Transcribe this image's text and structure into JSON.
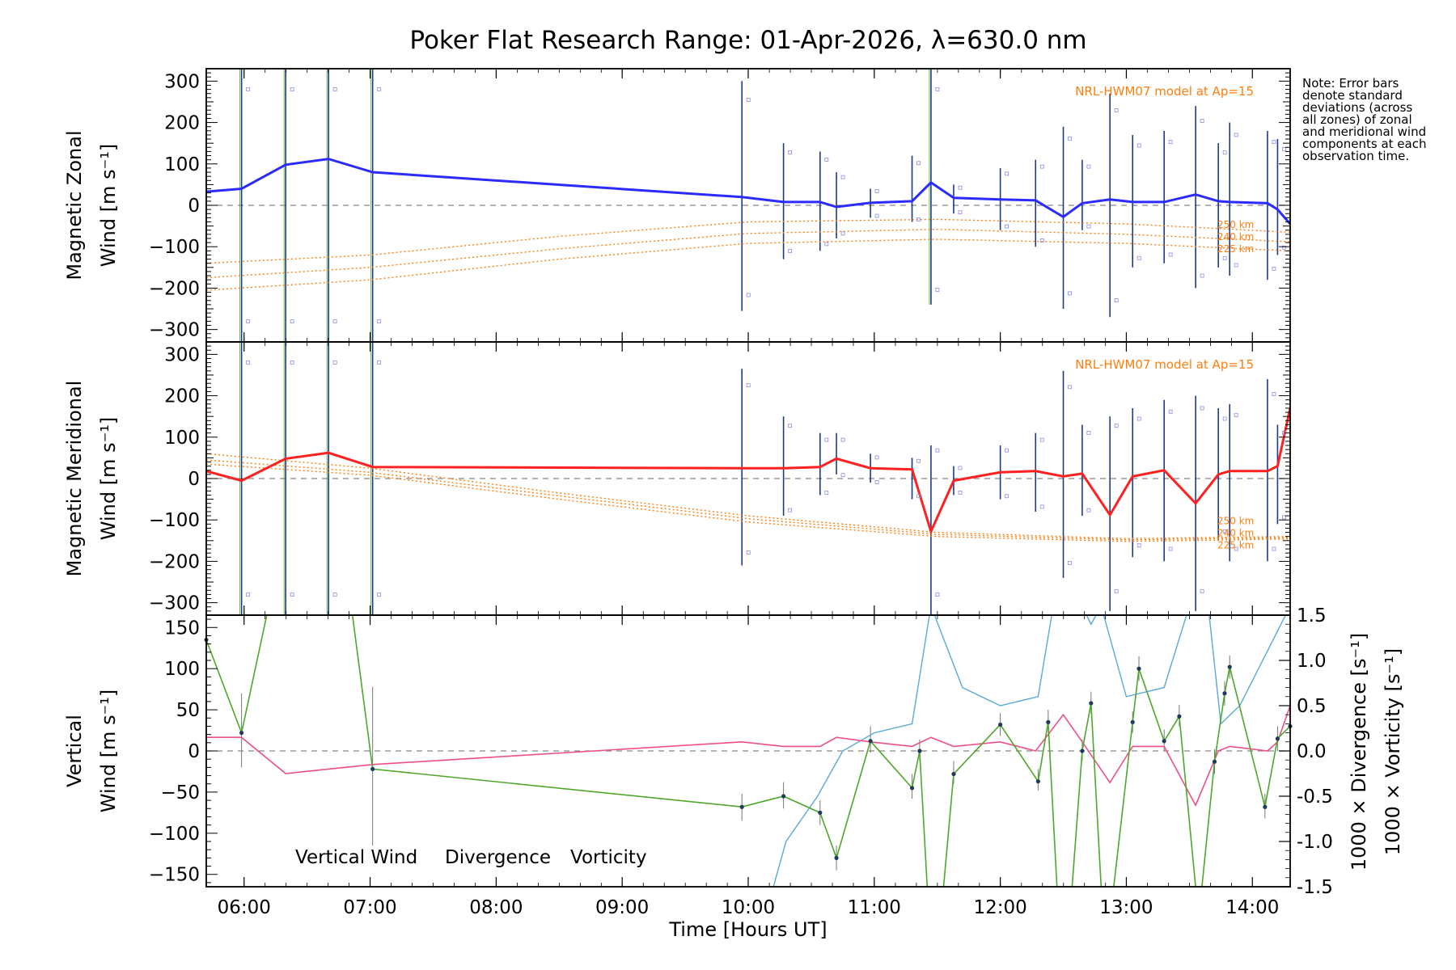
{
  "chart_data": {
    "type": "line",
    "title": "Poker Flat Research Range: 01-Apr-2026, λ=630.0 nm",
    "xlabel": "Time [Hours UT]",
    "x_range_hours": [
      5.7,
      14.3
    ],
    "x_ticks": [
      "06:00",
      "07:00",
      "08:00",
      "09:00",
      "10:00",
      "11:00",
      "12:00",
      "13:00",
      "14:00"
    ],
    "note": "Note: Error bars denote standard deviations (across all zones) of zonal and meridional wind components at each observation time.",
    "panels": [
      {
        "id": "zonal",
        "ylabel_line1": "Magnetic Zonal",
        "ylabel_line2": "Wind [m s⁻¹]",
        "ylim": [
          -330,
          330
        ],
        "yticks": [
          -300,
          -200,
          -100,
          0,
          100,
          200,
          300
        ],
        "model_label": "NRL-HWM07 model at Ap=15",
        "altitude_labels": [
          "250 km",
          "240 km",
          "225 km"
        ],
        "series": [
          {
            "name": "Magnetic Zonal Wind",
            "color": "#2b2bff",
            "x": [
              5.7,
              5.98,
              6.33,
              6.67,
              7.02,
              9.95,
              10.28,
              10.57,
              10.7,
              10.97,
              11.3,
              11.45,
              11.63,
              12.0,
              12.28,
              12.5,
              12.65,
              12.87,
              13.05,
              13.3,
              13.55,
              13.73,
              13.82,
              14.12,
              14.2,
              14.3
            ],
            "values": [
              33,
              40,
              98,
              112,
              80,
              20,
              8,
              8,
              -4,
              6,
              10,
              55,
              18,
              14,
              12,
              -28,
              5,
              14,
              8,
              8,
              26,
              10,
              8,
              5,
              -10,
              -45
            ]
          },
          {
            "name": "Model 250 km",
            "color": "#ff7f0e",
            "x": [
              5.7,
              7.0,
              8.5,
              10.0,
              11.5,
              13.0,
              14.3
            ],
            "values": [
              -140,
              -120,
              -75,
              -40,
              -34,
              -45,
              -65
            ]
          },
          {
            "name": "Model 240 km",
            "color": "#ff7f0e",
            "x": [
              5.7,
              7.0,
              8.5,
              10.0,
              11.5,
              13.0,
              14.3
            ],
            "values": [
              -175,
              -150,
              -105,
              -68,
              -58,
              -70,
              -88
            ]
          },
          {
            "name": "Model 225 km",
            "color": "#ff7f0e",
            "x": [
              5.7,
              7.0,
              8.5,
              10.0,
              11.5,
              13.0,
              14.3
            ],
            "values": [
              -205,
              -180,
              -130,
              -92,
              -82,
              -92,
              -110
            ]
          }
        ],
        "error_bars": [
          {
            "x": 5.98,
            "low": -330,
            "high": 330
          },
          {
            "x": 6.33,
            "low": -330,
            "high": 330
          },
          {
            "x": 6.67,
            "low": -330,
            "high": 330
          },
          {
            "x": 7.02,
            "low": -330,
            "high": 330
          },
          {
            "x": 9.95,
            "low": -255,
            "high": 300
          },
          {
            "x": 10.28,
            "low": -130,
            "high": 150
          },
          {
            "x": 10.57,
            "low": -110,
            "high": 130
          },
          {
            "x": 10.7,
            "low": -80,
            "high": 80
          },
          {
            "x": 10.97,
            "low": -30,
            "high": 40
          },
          {
            "x": 11.3,
            "low": -40,
            "high": 120
          },
          {
            "x": 11.45,
            "low": -240,
            "high": 330
          },
          {
            "x": 11.63,
            "low": -20,
            "high": 50
          },
          {
            "x": 12.0,
            "low": -60,
            "high": 90
          },
          {
            "x": 12.28,
            "low": -100,
            "high": 110
          },
          {
            "x": 12.5,
            "low": -250,
            "high": 190
          },
          {
            "x": 12.65,
            "low": -60,
            "high": 110
          },
          {
            "x": 12.87,
            "low": -270,
            "high": 270
          },
          {
            "x": 13.05,
            "low": -150,
            "high": 170
          },
          {
            "x": 13.3,
            "low": -140,
            "high": 180
          },
          {
            "x": 13.55,
            "low": -200,
            "high": 240
          },
          {
            "x": 13.73,
            "low": -150,
            "high": 150
          },
          {
            "x": 13.82,
            "low": -170,
            "high": 200
          },
          {
            "x": 14.12,
            "low": -180,
            "high": 180
          },
          {
            "x": 14.2,
            "low": -120,
            "high": 160
          }
        ]
      },
      {
        "id": "meridional",
        "ylabel_line1": "Magnetic Meridional",
        "ylabel_line2": "Wind [m s⁻¹]",
        "ylim": [
          -330,
          330
        ],
        "yticks": [
          -300,
          -200,
          -100,
          0,
          100,
          200,
          300
        ],
        "model_label": "NRL-HWM07 model at Ap=15",
        "altitude_labels": [
          "250 km",
          "240 km",
          "225 km"
        ],
        "series": [
          {
            "name": "Magnetic Meridional Wind",
            "color": "#ff2020",
            "x": [
              5.7,
              5.98,
              6.33,
              6.67,
              7.02,
              9.95,
              10.28,
              10.57,
              10.7,
              10.97,
              11.3,
              11.45,
              11.63,
              12.0,
              12.28,
              12.5,
              12.65,
              12.87,
              13.05,
              13.3,
              13.55,
              13.73,
              13.82,
              14.12,
              14.2,
              14.3
            ],
            "values": [
              18,
              -5,
              48,
              62,
              28,
              25,
              25,
              28,
              48,
              25,
              22,
              -128,
              -5,
              15,
              18,
              5,
              12,
              -88,
              5,
              20,
              -60,
              10,
              18,
              18,
              30,
              170
            ]
          },
          {
            "name": "Model 250 km",
            "color": "#ff7f0e",
            "x": [
              5.7,
              7.0,
              8.5,
              10.0,
              11.5,
              13.0,
              14.3
            ],
            "values": [
              60,
              25,
              -35,
              -90,
              -130,
              -145,
              -140
            ]
          },
          {
            "name": "Model 240 km",
            "color": "#ff7f0e",
            "x": [
              5.7,
              7.0,
              8.5,
              10.0,
              11.5,
              13.0,
              14.3
            ],
            "values": [
              45,
              15,
              -42,
              -97,
              -135,
              -148,
              -143
            ]
          },
          {
            "name": "Model 225 km",
            "color": "#ff7f0e",
            "x": [
              5.7,
              7.0,
              8.5,
              10.0,
              11.5,
              13.0,
              14.3
            ],
            "values": [
              35,
              8,
              -50,
              -105,
              -140,
              -152,
              -146
            ]
          }
        ],
        "error_bars": [
          {
            "x": 5.98,
            "low": -330,
            "high": 330
          },
          {
            "x": 6.33,
            "low": -330,
            "high": 330
          },
          {
            "x": 6.67,
            "low": -330,
            "high": 330
          },
          {
            "x": 7.02,
            "low": -330,
            "high": 330
          },
          {
            "x": 9.95,
            "low": -210,
            "high": 265
          },
          {
            "x": 10.28,
            "low": -90,
            "high": 150
          },
          {
            "x": 10.57,
            "low": -40,
            "high": 110
          },
          {
            "x": 10.7,
            "low": 10,
            "high": 110
          },
          {
            "x": 10.97,
            "low": -10,
            "high": 60
          },
          {
            "x": 11.3,
            "low": -50,
            "high": 50
          },
          {
            "x": 11.45,
            "low": -330,
            "high": 80
          },
          {
            "x": 11.63,
            "low": -40,
            "high": 30
          },
          {
            "x": 12.0,
            "low": -50,
            "high": 80
          },
          {
            "x": 12.28,
            "low": -80,
            "high": 110
          },
          {
            "x": 12.5,
            "low": -240,
            "high": 260
          },
          {
            "x": 12.65,
            "low": -90,
            "high": 130
          },
          {
            "x": 12.87,
            "low": -320,
            "high": 150
          },
          {
            "x": 13.05,
            "low": -190,
            "high": 170
          },
          {
            "x": 13.3,
            "low": -200,
            "high": 190
          },
          {
            "x": 13.55,
            "low": -320,
            "high": 200
          },
          {
            "x": 13.73,
            "low": -150,
            "high": 170
          },
          {
            "x": 13.82,
            "low": -200,
            "high": 180
          },
          {
            "x": 14.12,
            "low": -200,
            "high": 240
          },
          {
            "x": 14.2,
            "low": -110,
            "high": 130
          }
        ]
      },
      {
        "id": "vertical",
        "ylabel_line1": "Vertical",
        "ylabel_line2": "Wind [m s⁻¹]",
        "ylim": [
          -165,
          165
        ],
        "yticks": [
          -150,
          -100,
          -50,
          0,
          50,
          100,
          150
        ],
        "y2label_div": "1000 × Divergence [s⁻¹]",
        "y2label_vort": "1000 × Vorticity [s⁻¹]",
        "y2lim": [
          -1.5,
          1.5
        ],
        "y2ticks": [
          -1.5,
          -1.0,
          -0.5,
          0.0,
          0.5,
          1.0,
          1.5
        ],
        "legend": [
          "Vertical Wind",
          "Divergence",
          "Vorticity"
        ],
        "series": [
          {
            "name": "Vertical Wind",
            "color": "#4ea72a",
            "axis": "left",
            "x": [
              5.7,
              5.98,
              6.18,
              6.86,
              7.02,
              9.95,
              10.28,
              10.57,
              10.7,
              10.97,
              11.3,
              11.36,
              11.42,
              11.55,
              11.63,
              12.0,
              12.3,
              12.38,
              12.45,
              12.57,
              12.65,
              12.72,
              12.8,
              12.9,
              13.05,
              13.1,
              13.3,
              13.42,
              13.55,
              13.6,
              13.7,
              13.78,
              13.82,
              14.1,
              14.2,
              14.3
            ],
            "values": [
              135,
              22,
              165,
              165,
              -22,
              -68,
              -55,
              -75,
              -130,
              12,
              -45,
              0,
              -165,
              -165,
              -28,
              32,
              -37,
              35,
              -165,
              -165,
              0,
              58,
              -165,
              -165,
              35,
              100,
              12,
              42,
              -165,
              -165,
              -13,
              70,
              102,
              -68,
              15,
              30
            ]
          },
          {
            "name": "Divergence",
            "color": "#5aa9d6",
            "axis": "right",
            "x": [
              10.0,
              10.3,
              10.55,
              10.75,
              11.0,
              11.3,
              11.45,
              11.7,
              12.0,
              12.3,
              12.42,
              12.65,
              12.72,
              12.8,
              13.0,
              13.3,
              13.5,
              13.65,
              13.75,
              13.9,
              14.3
            ],
            "values": [
              -2.5,
              -1.0,
              -0.5,
              0.0,
              0.2,
              0.3,
              1.6,
              0.7,
              0.5,
              0.6,
              1.6,
              1.6,
              1.4,
              1.6,
              0.6,
              0.7,
              1.6,
              1.6,
              0.3,
              0.5,
              1.6
            ]
          },
          {
            "name": "Vorticity",
            "color": "#ee4f8a",
            "axis": "right",
            "x": [
              5.7,
              5.98,
              6.33,
              6.67,
              7.02,
              9.95,
              10.28,
              10.57,
              10.7,
              10.97,
              11.3,
              11.45,
              11.63,
              12.0,
              12.28,
              12.5,
              12.65,
              12.87,
              13.05,
              13.3,
              13.55,
              13.73,
              13.82,
              14.12,
              14.2,
              14.3
            ],
            "values": [
              0.15,
              0.15,
              -0.25,
              -0.2,
              -0.15,
              0.1,
              0.05,
              0.05,
              0.15,
              0.1,
              0.05,
              0.15,
              0.05,
              0.1,
              0.0,
              0.4,
              0.1,
              -0.35,
              0.05,
              0.05,
              -0.6,
              0.0,
              0.05,
              0.0,
              0.1,
              0.5
            ]
          }
        ],
        "error_bars": [
          {
            "x": 5.98,
            "low": -20,
            "high": 70
          },
          {
            "x": 7.02,
            "low": -115,
            "high": 78
          },
          {
            "x": 9.95,
            "low": -85,
            "high": -52
          },
          {
            "x": 10.28,
            "low": -70,
            "high": -38
          },
          {
            "x": 10.57,
            "low": -90,
            "high": -60
          },
          {
            "x": 10.7,
            "low": -145,
            "high": -115
          },
          {
            "x": 10.97,
            "low": -2,
            "high": 30
          },
          {
            "x": 11.3,
            "low": -58,
            "high": -28
          },
          {
            "x": 11.36,
            "low": -12,
            "high": 14
          },
          {
            "x": 11.63,
            "low": -40,
            "high": -12
          },
          {
            "x": 12.0,
            "low": 18,
            "high": 46
          },
          {
            "x": 12.3,
            "low": -48,
            "high": -22
          },
          {
            "x": 12.38,
            "low": 22,
            "high": 50
          },
          {
            "x": 12.65,
            "low": -12,
            "high": 14
          },
          {
            "x": 12.72,
            "low": 45,
            "high": 72
          },
          {
            "x": 13.05,
            "low": 22,
            "high": 48
          },
          {
            "x": 13.1,
            "low": 85,
            "high": 115
          },
          {
            "x": 13.3,
            "low": 0,
            "high": 26
          },
          {
            "x": 13.42,
            "low": 30,
            "high": 56
          },
          {
            "x": 13.7,
            "low": -28,
            "high": 2
          },
          {
            "x": 13.78,
            "low": 55,
            "high": 85
          },
          {
            "x": 13.82,
            "low": 88,
            "high": 116
          },
          {
            "x": 14.1,
            "low": -82,
            "high": -52
          },
          {
            "x": 14.2,
            "low": 0,
            "high": 30
          }
        ]
      }
    ]
  }
}
